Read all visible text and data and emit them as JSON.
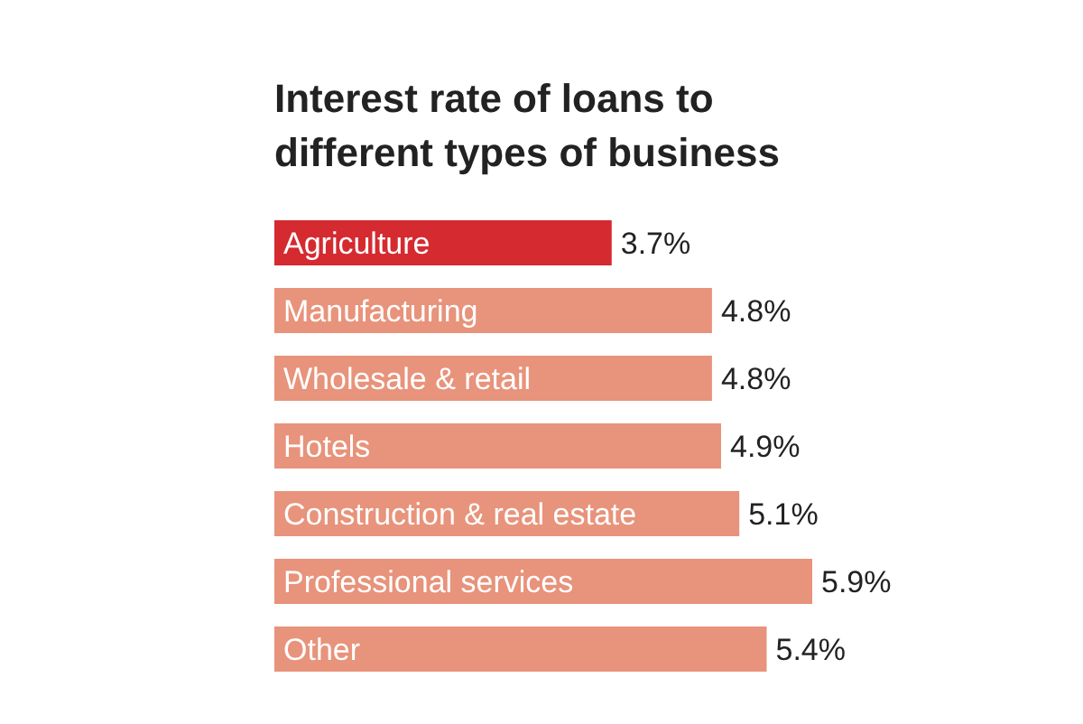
{
  "chart_data": {
    "type": "bar",
    "orientation": "horizontal",
    "title": "Interest rate of loans to different types of business",
    "categories": [
      "Agriculture",
      "Manufacturing",
      "Wholesale & retail",
      "Hotels",
      "Construction & real estate",
      "Professional services",
      "Other"
    ],
    "values": [
      3.7,
      4.8,
      4.8,
      4.9,
      5.1,
      5.9,
      5.4
    ],
    "colors": [
      "#d42a30",
      "#e8937b",
      "#e8937b",
      "#e8937b",
      "#e8937b",
      "#e8937b",
      "#e8937b"
    ],
    "value_labels": [
      "3.7%",
      "4.8%",
      "4.8%",
      "4.9%",
      "5.1%",
      "5.9%",
      "5.4%"
    ]
  }
}
